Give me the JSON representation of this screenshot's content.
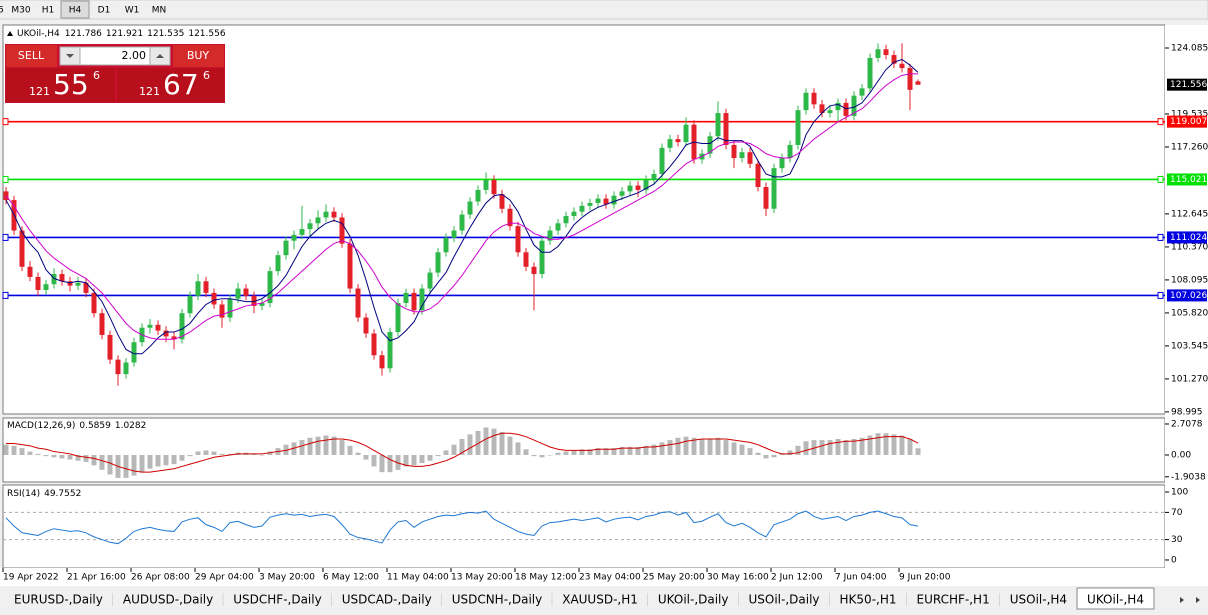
{
  "toolbar": {
    "items": [
      "5",
      "M30",
      "H1",
      "H4",
      "D1",
      "W1",
      "MN"
    ],
    "active": 3
  },
  "trade_panel": {
    "sell": "SELL",
    "lot": "2.00",
    "buy": "BUY",
    "sell_price": {
      "prefix": "121",
      "big": "55",
      "small": "6"
    },
    "buy_price": {
      "prefix": "121",
      "big": "67",
      "small": "6"
    }
  },
  "chart_data": {
    "type": "candlestick",
    "title": "UKOil-,H4",
    "up_color": "#2fb84a",
    "down_color": "#e3202a",
    "grid": false,
    "ylim": [
      98.85,
      125.67
    ],
    "yticks": [
      124.085,
      119.535,
      {
        "value": 117.26,
        "label": "117.260"
      },
      112.645,
      {
        "value": 110.37,
        "label": "110.370"
      },
      108.095,
      {
        "value": 105.82,
        "label": "105.820"
      },
      103.545,
      {
        "value": 101.27,
        "label": "101.270"
      },
      98.995
    ],
    "ohlc": [
      [
        114.2,
        114.5,
        113.3,
        113.6
      ],
      [
        113.6,
        113.9,
        111.2,
        111.5
      ],
      [
        111.5,
        111.8,
        108.7,
        109.0
      ],
      [
        109.0,
        109.4,
        108.0,
        108.3
      ],
      [
        108.3,
        108.6,
        107.0,
        107.4
      ],
      [
        107.4,
        108.1,
        107.1,
        107.8
      ],
      [
        107.8,
        108.9,
        107.5,
        108.5
      ],
      [
        108.5,
        108.8,
        107.7,
        108.0
      ],
      [
        108.0,
        108.3,
        107.3,
        107.7
      ],
      [
        107.7,
        108.3,
        107.4,
        107.9
      ],
      [
        107.9,
        108.2,
        106.9,
        107.2
      ],
      [
        107.2,
        107.5,
        105.5,
        105.8
      ],
      [
        105.8,
        106.1,
        104.0,
        104.3
      ],
      [
        104.3,
        104.6,
        102.3,
        102.6
      ],
      [
        102.6,
        102.9,
        100.8,
        101.6
      ],
      [
        101.6,
        102.7,
        101.3,
        102.4
      ],
      [
        102.4,
        104.1,
        102.1,
        103.8
      ],
      [
        103.8,
        105.1,
        103.5,
        104.8
      ],
      [
        104.8,
        105.4,
        104.4,
        105.0
      ],
      [
        105.0,
        105.3,
        104.3,
        104.6
      ],
      [
        104.6,
        104.9,
        103.8,
        104.2
      ],
      [
        104.2,
        104.5,
        103.3,
        104.0
      ],
      [
        104.0,
        106.1,
        103.7,
        105.8
      ],
      [
        105.8,
        107.3,
        105.5,
        107.0
      ],
      [
        107.0,
        108.5,
        106.7,
        108.0
      ],
      [
        108.0,
        108.3,
        106.9,
        107.2
      ],
      [
        107.2,
        107.5,
        106.1,
        106.4
      ],
      [
        106.4,
        106.7,
        104.8,
        105.5
      ],
      [
        105.5,
        107.1,
        105.2,
        106.8
      ],
      [
        106.8,
        107.9,
        106.5,
        107.5
      ],
      [
        107.5,
        107.8,
        106.7,
        107.0
      ],
      [
        107.0,
        107.3,
        105.8,
        106.3
      ],
      [
        106.3,
        106.8,
        106.0,
        106.5
      ],
      [
        106.5,
        109.0,
        106.2,
        108.7
      ],
      [
        108.7,
        110.1,
        108.4,
        109.8
      ],
      [
        109.8,
        111.1,
        109.5,
        110.8
      ],
      [
        110.8,
        111.5,
        110.2,
        111.2
      ],
      [
        111.2,
        113.2,
        110.9,
        111.6
      ],
      [
        111.6,
        112.3,
        111.0,
        112.0
      ],
      [
        112.0,
        112.9,
        111.6,
        112.4
      ],
      [
        112.4,
        113.3,
        112.1,
        112.8
      ],
      [
        112.8,
        113.1,
        112.1,
        112.4
      ],
      [
        112.4,
        112.7,
        110.3,
        110.6
      ],
      [
        110.6,
        110.9,
        107.2,
        107.5
      ],
      [
        107.5,
        107.8,
        105.2,
        105.5
      ],
      [
        105.5,
        105.8,
        104.1,
        104.4
      ],
      [
        104.4,
        104.7,
        102.6,
        102.9
      ],
      [
        102.9,
        103.2,
        101.5,
        102.0
      ],
      [
        102.0,
        104.8,
        101.7,
        104.5
      ],
      [
        104.5,
        106.8,
        104.2,
        106.5
      ],
      [
        106.5,
        107.5,
        106.2,
        107.2
      ],
      [
        107.2,
        107.5,
        105.7,
        106.0
      ],
      [
        106.0,
        107.8,
        105.7,
        107.5
      ],
      [
        107.5,
        108.9,
        107.2,
        108.6
      ],
      [
        108.6,
        110.3,
        108.3,
        110.0
      ],
      [
        110.0,
        111.3,
        109.7,
        111.0
      ],
      [
        111.0,
        111.8,
        110.7,
        111.5
      ],
      [
        111.5,
        112.9,
        111.2,
        112.6
      ],
      [
        112.6,
        113.8,
        112.3,
        113.5
      ],
      [
        113.5,
        114.6,
        113.2,
        114.3
      ],
      [
        114.3,
        115.5,
        114.0,
        115.0
      ],
      [
        115.0,
        115.3,
        113.7,
        114.0
      ],
      [
        114.0,
        114.3,
        112.7,
        113.0
      ],
      [
        113.0,
        113.3,
        111.5,
        111.8
      ],
      [
        111.8,
        112.1,
        109.7,
        110.0
      ],
      [
        110.0,
        110.3,
        108.7,
        109.0
      ],
      [
        109.0,
        109.3,
        106.0,
        108.5
      ],
      [
        108.5,
        111.1,
        108.2,
        110.8
      ],
      [
        110.8,
        111.8,
        110.5,
        111.5
      ],
      [
        111.5,
        112.3,
        111.2,
        112.0
      ],
      [
        112.0,
        112.8,
        111.7,
        112.5
      ],
      [
        112.5,
        113.1,
        112.2,
        112.8
      ],
      [
        112.8,
        113.5,
        112.5,
        113.2
      ],
      [
        113.2,
        113.7,
        112.9,
        113.4
      ],
      [
        113.4,
        114.0,
        113.1,
        113.7
      ],
      [
        113.7,
        114.0,
        113.0,
        113.3
      ],
      [
        113.3,
        114.2,
        113.0,
        113.9
      ],
      [
        113.9,
        114.5,
        113.6,
        114.2
      ],
      [
        114.2,
        114.9,
        113.9,
        114.6
      ],
      [
        114.6,
        114.9,
        113.8,
        114.3
      ],
      [
        114.3,
        115.3,
        114.0,
        115.0
      ],
      [
        115.0,
        115.7,
        114.7,
        115.4
      ],
      [
        115.4,
        117.5,
        115.1,
        117.2
      ],
      [
        117.2,
        118.1,
        116.9,
        117.8
      ],
      [
        117.8,
        118.1,
        117.3,
        117.6
      ],
      [
        117.6,
        119.3,
        117.3,
        118.8
      ],
      [
        118.8,
        119.1,
        116.1,
        116.4
      ],
      [
        116.4,
        117.1,
        116.1,
        116.8
      ],
      [
        116.8,
        118.3,
        116.5,
        118.0
      ],
      [
        118.0,
        120.4,
        117.7,
        119.6
      ],
      [
        119.6,
        119.9,
        117.1,
        117.4
      ],
      [
        117.4,
        117.7,
        115.8,
        116.5
      ],
      [
        116.5,
        117.2,
        116.2,
        116.9
      ],
      [
        116.9,
        117.2,
        115.8,
        116.1
      ],
      [
        116.1,
        116.4,
        114.2,
        114.5
      ],
      [
        114.5,
        114.8,
        112.5,
        113.0
      ],
      [
        113.0,
        116.1,
        112.7,
        115.8
      ],
      [
        115.8,
        116.8,
        115.5,
        116.5
      ],
      [
        116.5,
        117.7,
        116.2,
        117.4
      ],
      [
        117.4,
        120.1,
        117.1,
        119.8
      ],
      [
        119.8,
        121.3,
        119.5,
        121.0
      ],
      [
        121.0,
        121.3,
        119.9,
        120.2
      ],
      [
        120.2,
        120.5,
        119.3,
        119.6
      ],
      [
        119.6,
        120.1,
        119.3,
        119.8
      ],
      [
        119.8,
        120.6,
        119.0,
        120.3
      ],
      [
        120.3,
        120.6,
        119.1,
        119.4
      ],
      [
        119.4,
        121.1,
        119.1,
        120.8
      ],
      [
        120.8,
        121.6,
        120.5,
        121.3
      ],
      [
        121.3,
        123.7,
        121.0,
        123.4
      ],
      [
        123.4,
        124.4,
        123.1,
        124.0
      ],
      [
        124.0,
        124.3,
        123.3,
        123.6
      ],
      [
        123.6,
        123.9,
        122.7,
        123.0
      ],
      [
        123.0,
        124.4,
        122.4,
        122.7
      ],
      [
        122.7,
        123.0,
        119.8,
        121.2
      ],
      [
        121.786,
        121.921,
        121.535,
        121.556
      ]
    ],
    "ma": [
      {
        "color": "#000080",
        "values": [
          113.6,
          112.6,
          111.4,
          110.6,
          110.0,
          108.8,
          108.2,
          108.0,
          107.9,
          108.0,
          107.9,
          107.3,
          106.6,
          105.5,
          104.3,
          103.3,
          103.0,
          103.0,
          103.5,
          104.1,
          104.5,
          104.5,
          104.7,
          105.1,
          105.8,
          106.4,
          106.7,
          106.8,
          106.8,
          106.7,
          106.6,
          106.6,
          106.8,
          107.2,
          107.7,
          108.4,
          109.4,
          110.4,
          111.1,
          111.6,
          112.0,
          112.2,
          112.0,
          111.1,
          109.8,
          108.1,
          106.2,
          104.5,
          103.9,
          104.1,
          104.6,
          105.2,
          106.3,
          107.2,
          107.9,
          108.6,
          109.7,
          110.7,
          111.7,
          112.6,
          113.4,
          113.9,
          114.0,
          113.6,
          112.8,
          111.6,
          110.5,
          110.0,
          110.0,
          110.4,
          111.1,
          111.9,
          112.4,
          112.8,
          113.1,
          113.3,
          113.5,
          113.7,
          113.9,
          114.1,
          114.4,
          114.7,
          115.3,
          115.9,
          116.6,
          117.4,
          117.6,
          117.5,
          117.5,
          117.9,
          117.7,
          117.7,
          117.7,
          117.3,
          116.3,
          115.4,
          115.2,
          115.2,
          115.4,
          116.5,
          118.1,
          119.0,
          119.6,
          120.1,
          120.2,
          119.9,
          120.0,
          120.3,
          121.0,
          121.8,
          122.6,
          123.1,
          123.3,
          122.9,
          122.4
        ]
      },
      {
        "color": "#d000d0",
        "values": [
          113.9,
          113.2,
          112.3,
          111.5,
          110.8,
          110.1,
          109.6,
          109.2,
          108.8,
          108.5,
          108.2,
          107.7,
          107.2,
          106.5,
          105.8,
          105.1,
          104.6,
          104.3,
          104.1,
          104.0,
          104.0,
          104.0,
          104.2,
          104.5,
          104.9,
          105.3,
          105.6,
          105.7,
          105.9,
          106.1,
          106.3,
          106.4,
          106.5,
          106.8,
          107.2,
          107.7,
          108.2,
          108.7,
          109.2,
          109.7,
          110.2,
          110.6,
          110.8,
          110.6,
          110.1,
          109.4,
          108.6,
          107.6,
          106.9,
          106.4,
          106.1,
          105.9,
          105.9,
          106.1,
          106.5,
          107.1,
          107.7,
          108.4,
          109.2,
          110.0,
          110.8,
          111.4,
          111.8,
          112.0,
          112.0,
          111.7,
          111.3,
          111.1,
          110.9,
          110.9,
          111.0,
          111.2,
          111.5,
          111.8,
          112.1,
          112.4,
          112.7,
          113.0,
          113.3,
          113.6,
          113.9,
          114.2,
          114.6,
          115.1,
          115.6,
          116.1,
          116.4,
          116.6,
          116.9,
          117.3,
          117.5,
          117.6,
          117.6,
          117.5,
          117.2,
          116.8,
          116.6,
          116.5,
          116.5,
          116.8,
          117.3,
          117.8,
          118.2,
          118.6,
          119.0,
          119.3,
          119.6,
          119.9,
          120.4,
          121.0,
          121.5,
          121.9,
          122.2,
          122.3,
          122.3
        ]
      }
    ],
    "levels": [
      {
        "value": 119.007,
        "color": "#ff0000"
      },
      {
        "value": 115.021,
        "color": "#00e000"
      },
      {
        "value": 111.024,
        "color": "#0000e0"
      },
      {
        "value": 107.026,
        "color": "#0000e0"
      }
    ],
    "x_labels": [
      "19 Apr 2022",
      "21 Apr 16:00",
      "26 Apr 08:00",
      "29 Apr 04:00",
      "3 May 20:00",
      "6 May 12:00",
      "11 May 04:00",
      "13 May 20:00",
      "18 May 12:00",
      "23 May 04:00",
      "25 May 20:00",
      "30 May 16:00",
      "2 Jun 12:00",
      "7 Jun 04:00",
      "9 Jun 20:00"
    ],
    "macd": {
      "label": "MACD(12,26,9)",
      "histogram_color": "#b8b8b8",
      "signal_color": "#d00000",
      "ylim": [
        -2.36,
        3.23
      ],
      "yticks": [
        2.7078,
        {
          "value": 0,
          "label": "0.00"
        },
        -1.9038
      ],
      "histogram": [
        0.9,
        0.8,
        0.6,
        0.3,
        0.1,
        -0.1,
        -0.2,
        -0.3,
        -0.4,
        -0.5,
        -0.6,
        -0.9,
        -1.3,
        -1.7,
        -2.0,
        -2.0,
        -1.8,
        -1.5,
        -1.2,
        -1.0,
        -0.9,
        -0.8,
        -0.5,
        -0.1,
        0.3,
        0.4,
        0.3,
        0.1,
        0.1,
        0.2,
        0.2,
        0.1,
        0.0,
        0.3,
        0.6,
        0.9,
        1.1,
        1.3,
        1.5,
        1.6,
        1.7,
        1.6,
        1.3,
        0.8,
        0.2,
        -0.4,
        -1.0,
        -1.5,
        -1.5,
        -1.3,
        -1.0,
        -0.9,
        -0.7,
        -0.5,
        -0.1,
        0.4,
        0.9,
        1.4,
        1.8,
        2.1,
        2.4,
        2.3,
        2.0,
        1.6,
        1.1,
        0.5,
        -0.1,
        -0.2,
        0.0,
        0.2,
        0.3,
        0.4,
        0.5,
        0.5,
        0.6,
        0.6,
        0.6,
        0.7,
        0.7,
        0.7,
        0.8,
        0.9,
        1.1,
        1.3,
        1.5,
        1.6,
        1.5,
        1.4,
        1.4,
        1.5,
        1.3,
        1.1,
        0.9,
        0.6,
        0.2,
        -0.3,
        -0.2,
        0.1,
        0.4,
        0.8,
        1.2,
        1.3,
        1.3,
        1.3,
        1.4,
        1.3,
        1.4,
        1.5,
        1.7,
        1.9,
        1.9,
        1.8,
        1.7,
        1.4,
        0.5859
      ],
      "signal": [
        1.0,
        1.0,
        0.9,
        0.8,
        0.6,
        0.5,
        0.3,
        0.2,
        0.1,
        -0.1,
        -0.2,
        -0.3,
        -0.5,
        -0.7,
        -1.0,
        -1.2,
        -1.4,
        -1.5,
        -1.5,
        -1.4,
        -1.3,
        -1.2,
        -1.0,
        -0.8,
        -0.6,
        -0.4,
        -0.2,
        -0.1,
        0.0,
        0.1,
        0.1,
        0.1,
        0.1,
        0.2,
        0.3,
        0.4,
        0.6,
        0.8,
        1.0,
        1.2,
        1.3,
        1.4,
        1.4,
        1.3,
        1.1,
        0.8,
        0.4,
        0.0,
        -0.4,
        -0.7,
        -0.9,
        -1.0,
        -1.0,
        -0.9,
        -0.7,
        -0.5,
        -0.2,
        0.2,
        0.6,
        1.0,
        1.4,
        1.7,
        1.9,
        1.9,
        1.8,
        1.6,
        1.3,
        1.0,
        0.7,
        0.5,
        0.4,
        0.4,
        0.4,
        0.4,
        0.5,
        0.5,
        0.5,
        0.6,
        0.6,
        0.6,
        0.7,
        0.7,
        0.8,
        0.9,
        1.0,
        1.2,
        1.3,
        1.4,
        1.4,
        1.4,
        1.4,
        1.3,
        1.2,
        1.1,
        0.9,
        0.6,
        0.3,
        0.1,
        0.1,
        0.2,
        0.4,
        0.6,
        0.8,
        1.0,
        1.1,
        1.2,
        1.2,
        1.3,
        1.4,
        1.5,
        1.6,
        1.6,
        1.6,
        1.4,
        1.0282
      ]
    },
    "rsi": {
      "label": "RSI(14)",
      "color": "#1e78d2",
      "ylim": [
        -11.8,
        110.3
      ],
      "yticks": [
        100,
        70,
        30,
        0
      ],
      "levels": [
        70,
        30
      ],
      "values": [
        62,
        50,
        40,
        38,
        36,
        42,
        46,
        44,
        42,
        43,
        40,
        34,
        30,
        26,
        24,
        32,
        42,
        46,
        48,
        45,
        43,
        42,
        56,
        60,
        62,
        52,
        48,
        42,
        55,
        57,
        52,
        48,
        50,
        63,
        66,
        68,
        66,
        67,
        64,
        66,
        67,
        64,
        52,
        38,
        33,
        31,
        28,
        25,
        44,
        56,
        58,
        48,
        56,
        60,
        64,
        66,
        65,
        68,
        70,
        69,
        72,
        60,
        54,
        48,
        42,
        38,
        36,
        50,
        55,
        56,
        58,
        60,
        58,
        60,
        62,
        56,
        60,
        62,
        63,
        59,
        64,
        66,
        70,
        71,
        66,
        70,
        55,
        57,
        63,
        68,
        55,
        50,
        54,
        48,
        40,
        34,
        52,
        56,
        60,
        68,
        72,
        64,
        60,
        62,
        64,
        58,
        64,
        66,
        70,
        72,
        68,
        64,
        62,
        52,
        49.7552
      ]
    }
  },
  "tabs": {
    "items": [
      "EURUSD-,Daily",
      "AUDUSD-,Daily",
      "USDCHF-,Daily",
      "USDCAD-,Daily",
      "USDCNH-,Daily",
      "XAUUSD-,H1",
      "UKOil-,Daily",
      "USOil-,Daily",
      "HK50-,H1",
      "EURCHF-,H1",
      "USOil-,H4",
      "UKOil-,H4"
    ],
    "active": 11
  }
}
